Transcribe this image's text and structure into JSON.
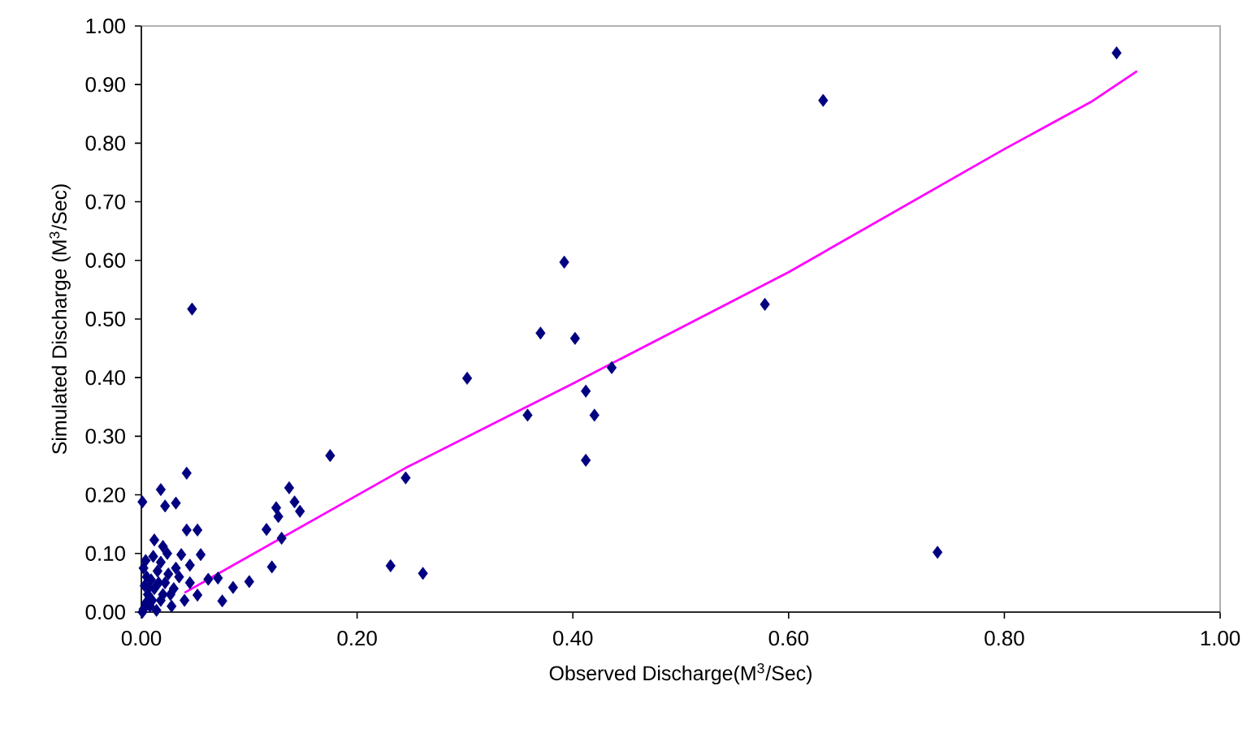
{
  "chart_data": {
    "type": "scatter",
    "xlabel": "Observed Discharge(M$^{3}$/Sec)",
    "ylabel": "Simulated Discharge (M$^{3}$/Sec)",
    "xlim": [
      0,
      1
    ],
    "ylim": [
      0,
      1
    ],
    "xticks": [
      {
        "value": 0,
        "label": "0.00"
      },
      {
        "value": 0.2,
        "label": "0.20"
      },
      {
        "value": 0.4,
        "label": "0.40"
      },
      {
        "value": 0.6,
        "label": "0.60"
      },
      {
        "value": 0.8,
        "label": "0.80"
      },
      {
        "value": 1,
        "label": "1.00"
      }
    ],
    "yticks": [
      {
        "value": 0,
        "label": "0.00"
      },
      {
        "value": 0.1,
        "label": "0.10"
      },
      {
        "value": 0.2,
        "label": "0.20"
      },
      {
        "value": 0.3,
        "label": "0.30"
      },
      {
        "value": 0.4,
        "label": "0.40"
      },
      {
        "value": 0.5,
        "label": "0.50"
      },
      {
        "value": 0.6,
        "label": "0.60"
      },
      {
        "value": 0.7,
        "label": "0.70"
      },
      {
        "value": 0.8,
        "label": "0.80"
      },
      {
        "value": 0.9,
        "label": "0.90"
      },
      {
        "value": 1,
        "label": "1.00"
      }
    ],
    "grid": false,
    "series": [
      {
        "marker": "diamond",
        "color": "#000080",
        "x": [
          0.904,
          0.632,
          0.392,
          0.578,
          0.37,
          0.402,
          0.302,
          0.436,
          0.412,
          0.358,
          0.42,
          0.412,
          0.738,
          0.261,
          0.245,
          0.175,
          0.231,
          0.047,
          0.042,
          0.001,
          0.018,
          0.032,
          0.022,
          0.137,
          0.125,
          0.142,
          0.127,
          0.147,
          0.116,
          0.13,
          0.121,
          0.042,
          0.052,
          0.012,
          0.02,
          0.037,
          0.055,
          0.045,
          0.071,
          0.1,
          0.085,
          0.075,
          0.052,
          0.062,
          0.002,
          0.004,
          0.006,
          0.003,
          0.005,
          0.002,
          0.004,
          0.008,
          0.01,
          0.012,
          0.009,
          0.015,
          0.018,
          0.02,
          0.022,
          0.025,
          0.028,
          0.03,
          0.014,
          0.018,
          0.035,
          0.032,
          0.04,
          0.045,
          0.011,
          0.024,
          0.001,
          0.016,
          0.007,
          0.027
        ],
        "values": [
          0.954,
          0.873,
          0.597,
          0.525,
          0.476,
          0.467,
          0.399,
          0.417,
          0.377,
          0.336,
          0.336,
          0.259,
          0.102,
          0.066,
          0.229,
          0.267,
          0.079,
          0.517,
          0.237,
          0.188,
          0.209,
          0.186,
          0.181,
          0.212,
          0.178,
          0.188,
          0.163,
          0.172,
          0.141,
          0.126,
          0.077,
          0.14,
          0.14,
          0.123,
          0.112,
          0.098,
          0.098,
          0.08,
          0.058,
          0.052,
          0.042,
          0.019,
          0.029,
          0.056,
          0.005,
          0.015,
          0.03,
          0.045,
          0.06,
          0.075,
          0.088,
          0.01,
          0.02,
          0.04,
          0.055,
          0.07,
          0.085,
          0.03,
          0.05,
          0.065,
          0.01,
          0.04,
          0.003,
          0.02,
          0.06,
          0.075,
          0.02,
          0.05,
          0.095,
          0.1,
          0.0,
          0.05,
          0.042,
          0.03
        ]
      },
      {
        "type": "line",
        "marker": "none",
        "color": "#ff00ff",
        "x": [
          0.04,
          0.245,
          0.4,
          0.6,
          0.8,
          0.88,
          0.923
        ],
        "values": [
          0.033,
          0.246,
          0.39,
          0.58,
          0.79,
          0.87,
          0.923
        ]
      }
    ]
  }
}
